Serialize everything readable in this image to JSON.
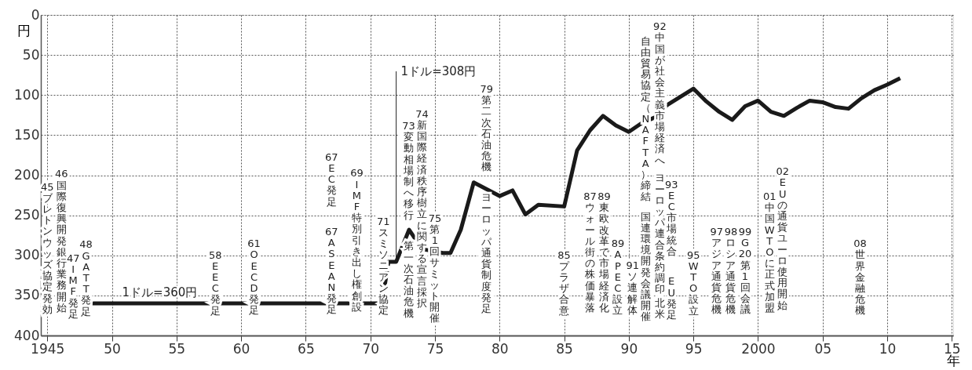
{
  "chart_data": {
    "type": "line",
    "xlabel": "年",
    "ylabel": "円",
    "xlim": [
      1944.5,
      2015.1
    ],
    "ylim": [
      400,
      0
    ],
    "xticks": [
      {
        "value": 1945,
        "label": "1945"
      },
      {
        "value": 1950,
        "label": "50"
      },
      {
        "value": 1955,
        "label": "55"
      },
      {
        "value": 1960,
        "label": "60"
      },
      {
        "value": 1965,
        "label": "65"
      },
      {
        "value": 1970,
        "label": "70"
      },
      {
        "value": 1975,
        "label": "75"
      },
      {
        "value": 1980,
        "label": "80"
      },
      {
        "value": 1985,
        "label": "85"
      },
      {
        "value": 1990,
        "label": "90"
      },
      {
        "value": 1995,
        "label": "95"
      },
      {
        "value": 2000,
        "label": "2000"
      },
      {
        "value": 2005,
        "label": "05"
      },
      {
        "value": 2010,
        "label": "10"
      },
      {
        "value": 2015,
        "label": "15"
      }
    ],
    "yticks": [
      0,
      50,
      100,
      150,
      200,
      250,
      300,
      350,
      400
    ],
    "grid": true,
    "marker": "none",
    "line_style": "solid",
    "series": [
      {
        "color": "#1a1a1a",
        "x": [
          1948.5,
          1970.9,
          1971.4,
          1972,
          1973,
          1973.5,
          1974,
          1975.6,
          1976.2,
          1977,
          1978,
          1980,
          1981,
          1982,
          1983,
          1985,
          1986,
          1987,
          1988,
          1989,
          1990,
          1991,
          1992,
          1993,
          1995,
          1996,
          1997,
          1998,
          1999,
          2000,
          2001,
          2002,
          2003,
          2004,
          2005,
          2006,
          2007,
          2008,
          2009,
          2010,
          2011
        ],
        "values": [
          360,
          360,
          308,
          308,
          268,
          280,
          292,
          297,
          297,
          268,
          209,
          226,
          219,
          249,
          237,
          239,
          169,
          144,
          126,
          138,
          146,
          135,
          128,
          112,
          92,
          108,
          121,
          131,
          114,
          107,
          121,
          126,
          116,
          107,
          109,
          115,
          117,
          104,
          94,
          87,
          79
        ]
      }
    ],
    "annotations": [
      {
        "text": "1ドル=360円",
        "x": 1953.7,
        "y": 360
      },
      {
        "text": "1ドル=308円",
        "x": 1972,
        "y": 308
      },
      "45ブレトンウッズ協定発効",
      "46国際復興開発銀行業務開始",
      "47IMF発足",
      "48GATT発足",
      "58EEC発足",
      "61OECD発足",
      "67EC発足",
      "67ASEAN発足",
      "69IMF特別引き出し権創設",
      "71スミソニアン協定",
      "73変動相場制へ移行",
      "第一次石油危機",
      "74新国際経済秩序樹立に関する宣言採択",
      "75第1回サミット開催",
      "79第二次石油危機",
      "ヨーロッパ通貨制度発足",
      "85プラザ合意",
      "87ウォール街の株価暴落",
      "89東欧改革で市場経済化",
      "89APEC設立",
      "91ソ連解体",
      "92中国が社会主義市場経済へ",
      "ヨーロッパ連合条約調印",
      "北米",
      "自由貿易協定（NAFTA）締結",
      "国連環境開発会議開催",
      "93EC市場統合",
      "EU発足",
      "95WTO設立",
      "97アジア通貨危機",
      "98ロシア通貨危機",
      "99G20第1回会議",
      "01中国WTOに正式加盟",
      "02EUの通貨ユーロ使用開始",
      "08世界金融危機"
    ]
  }
}
